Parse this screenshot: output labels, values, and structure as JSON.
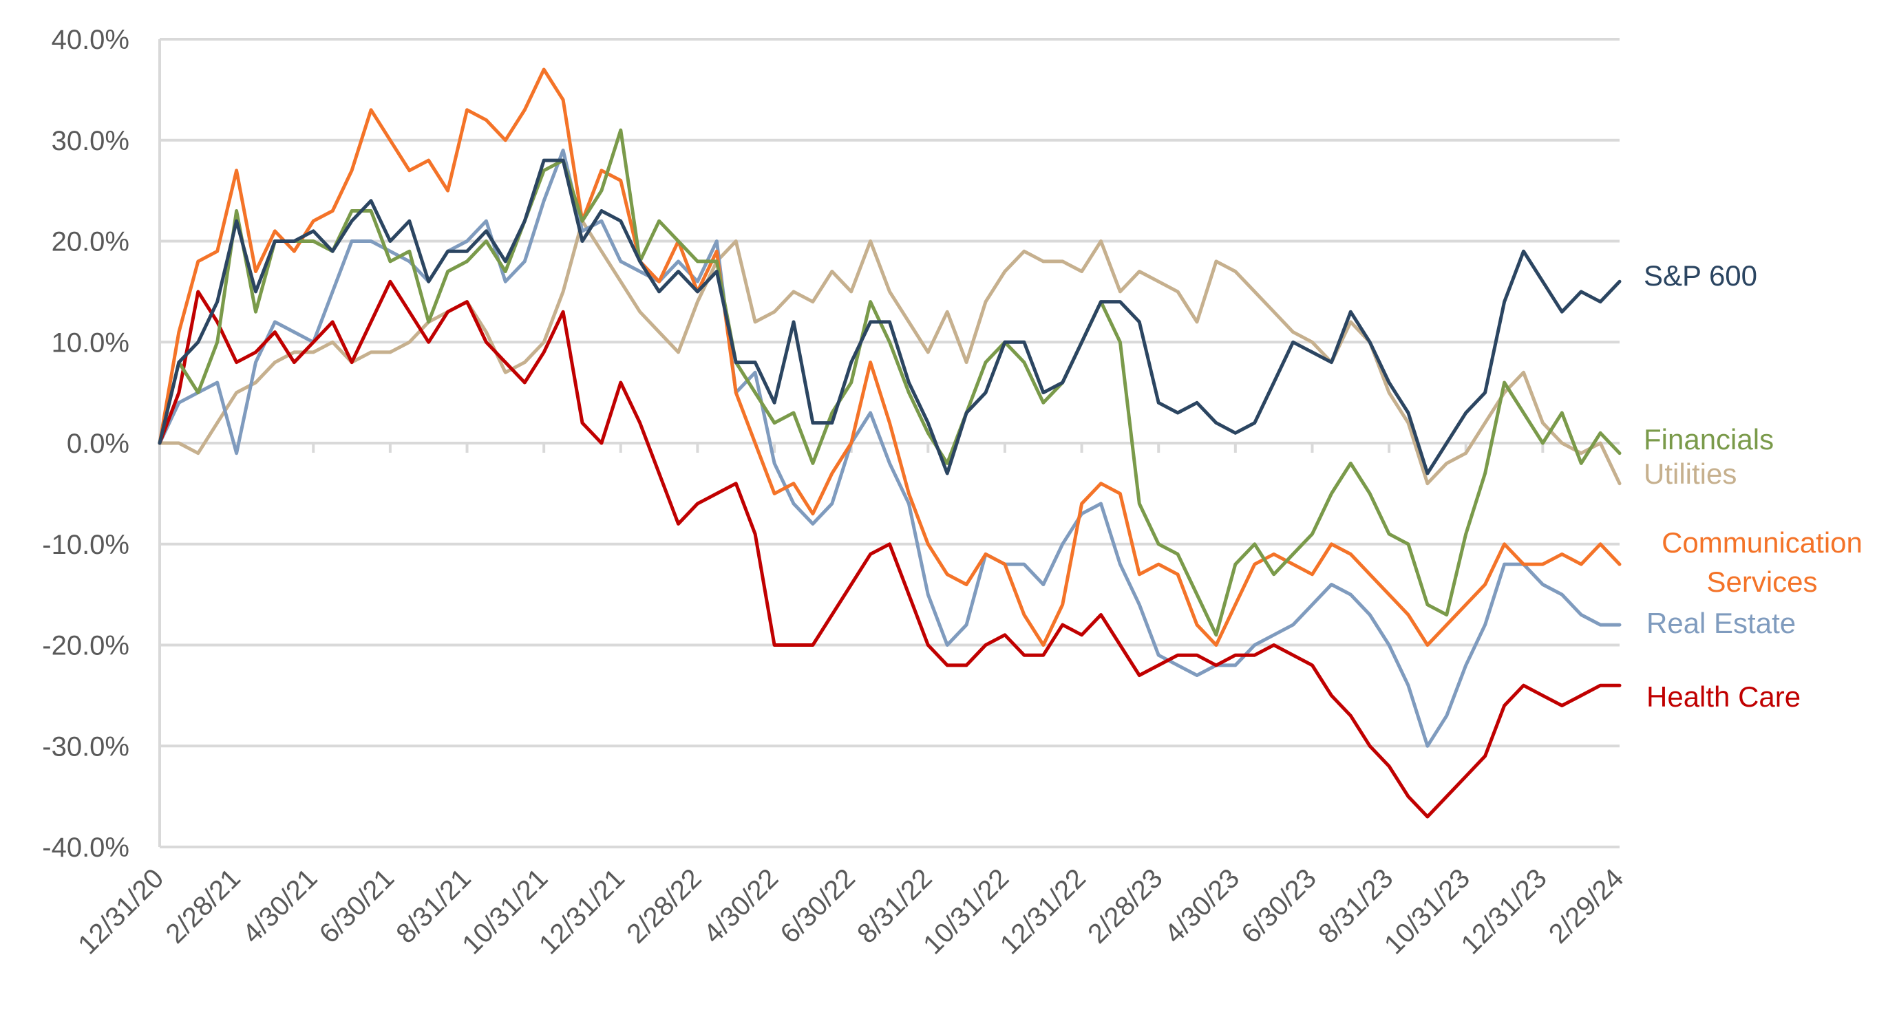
{
  "chart_data": {
    "type": "line",
    "title": "",
    "xlabel": "",
    "ylabel": "",
    "ylim": [
      -40,
      40
    ],
    "ytick_step": 10,
    "ytick_labels": [
      "40.0%",
      "30.0%",
      "20.0%",
      "10.0%",
      "0.0%",
      "-10.0%",
      "-20.0%",
      "-30.0%",
      "-40.0%"
    ],
    "grid": true,
    "legend": "inline-right",
    "x_unit": "months since 12/31/20",
    "xlim": [
      0,
      38
    ],
    "xtick_labels": [
      "12/31/20",
      "2/28/21",
      "4/30/21",
      "6/30/21",
      "8/31/21",
      "10/31/21",
      "12/31/21",
      "2/28/22",
      "4/30/22",
      "6/30/22",
      "8/31/22",
      "10/31/22",
      "12/31/22",
      "2/28/23",
      "4/30/23",
      "6/30/23",
      "8/31/23",
      "10/31/23",
      "12/31/23",
      "2/29/24"
    ],
    "x": [
      0,
      0.5,
      1,
      1.5,
      2,
      2.5,
      3,
      3.5,
      4,
      4.5,
      5,
      5.5,
      6,
      6.5,
      7,
      7.5,
      8,
      8.5,
      9,
      9.5,
      10,
      10.5,
      11,
      11.5,
      12,
      12.5,
      13,
      13.5,
      14,
      14.5,
      15,
      15.5,
      16,
      16.5,
      17,
      17.5,
      18,
      18.5,
      19,
      19.5,
      20,
      20.5,
      21,
      21.5,
      22,
      22.5,
      23,
      23.5,
      24,
      24.5,
      25,
      25.5,
      26,
      26.5,
      27,
      27.5,
      28,
      28.5,
      29,
      29.5,
      30,
      30.5,
      31,
      31.5,
      32,
      32.5,
      33,
      33.5,
      34,
      34.5,
      35,
      35.5,
      36,
      36.5,
      37,
      37.5,
      38
    ],
    "series": [
      {
        "name": "Utilities",
        "label": "Utilities",
        "color": "#C6B08E",
        "values": [
          0,
          0,
          -1,
          2,
          5,
          6,
          8,
          9,
          9,
          10,
          8,
          9,
          9,
          10,
          12,
          13,
          14,
          11,
          7,
          8,
          10,
          15,
          22,
          19,
          16,
          13,
          11,
          9,
          14,
          18,
          20,
          12,
          13,
          15,
          14,
          17,
          15,
          20,
          15,
          12,
          9,
          13,
          8,
          14,
          17,
          19,
          18,
          18,
          17,
          20,
          15,
          17,
          16,
          15,
          12,
          18,
          17,
          15,
          13,
          11,
          10,
          8,
          12,
          10,
          5,
          2,
          -4,
          -2,
          -1,
          2,
          5,
          7,
          2,
          0,
          -1,
          0,
          -4
        ]
      },
      {
        "name": "Real Estate",
        "label": "Real Estate",
        "color": "#7F9BBE",
        "values": [
          0,
          4,
          5,
          6,
          -1,
          8,
          12,
          11,
          10,
          15,
          20,
          20,
          19,
          18,
          16,
          19,
          20,
          22,
          16,
          18,
          24,
          29,
          21,
          22,
          18,
          17,
          16,
          18,
          16,
          20,
          5,
          7,
          -2,
          -6,
          -8,
          -6,
          0,
          3,
          -2,
          -6,
          -15,
          -20,
          -18,
          -11,
          -12,
          -12,
          -14,
          -10,
          -7,
          -6,
          -12,
          -16,
          -21,
          -22,
          -23,
          -22,
          -22,
          -20,
          -19,
          -18,
          -16,
          -14,
          -15,
          -17,
          -20,
          -24,
          -30,
          -27,
          -22,
          -18,
          -12,
          -12,
          -14,
          -15,
          -17,
          -18,
          -18
        ]
      },
      {
        "name": "Health Care",
        "label": "Health Care",
        "color": "#C00000",
        "values": [
          0,
          5,
          15,
          12,
          8,
          9,
          11,
          8,
          10,
          12,
          8,
          12,
          16,
          13,
          10,
          13,
          14,
          10,
          8,
          6,
          9,
          13,
          2,
          0,
          6,
          2,
          -3,
          -8,
          -6,
          -5,
          -4,
          -9,
          -20,
          -20,
          -20,
          -17,
          -14,
          -11,
          -10,
          -15,
          -20,
          -22,
          -22,
          -20,
          -19,
          -21,
          -21,
          -18,
          -19,
          -17,
          -20,
          -23,
          -22,
          -21,
          -21,
          -22,
          -21,
          -21,
          -20,
          -21,
          -22,
          -25,
          -27,
          -30,
          -32,
          -35,
          -37,
          -35,
          -33,
          -31,
          -26,
          -24,
          -25,
          -26,
          -25,
          -24,
          -24
        ]
      },
      {
        "name": "Communication Services",
        "label": [
          "Communication",
          "Services"
        ],
        "color": "#F47328",
        "values": [
          0,
          11,
          18,
          19,
          27,
          17,
          21,
          19,
          22,
          23,
          27,
          33,
          30,
          27,
          28,
          25,
          33,
          32,
          30,
          33,
          37,
          34,
          22,
          27,
          26,
          18,
          16,
          20,
          15,
          19,
          5,
          0,
          -5,
          -4,
          -7,
          -3,
          0,
          8,
          2,
          -5,
          -10,
          -13,
          -14,
          -11,
          -12,
          -17,
          -20,
          -16,
          -6,
          -4,
          -5,
          -13,
          -12,
          -13,
          -18,
          -20,
          -16,
          -12,
          -11,
          -12,
          -13,
          -10,
          -11,
          -13,
          -15,
          -17,
          -20,
          -18,
          -16,
          -14,
          -10,
          -12,
          -12,
          -11,
          -12,
          -10,
          -12
        ]
      },
      {
        "name": "Financials",
        "label": "Financials",
        "color": "#7A9A4A",
        "values": [
          0,
          8,
          5,
          10,
          23,
          13,
          20,
          20,
          20,
          19,
          23,
          23,
          18,
          19,
          12,
          17,
          18,
          20,
          17,
          22,
          27,
          28,
          22,
          25,
          31,
          18,
          22,
          20,
          18,
          18,
          8,
          5,
          2,
          3,
          -2,
          3,
          6,
          14,
          10,
          5,
          1,
          -2,
          3,
          8,
          10,
          8,
          4,
          6,
          10,
          14,
          10,
          -6,
          -10,
          -11,
          -15,
          -19,
          -12,
          -10,
          -13,
          -11,
          -9,
          -5,
          -2,
          -5,
          -9,
          -10,
          -16,
          -17,
          -9,
          -3,
          6,
          3,
          0,
          3,
          -2,
          1,
          -1
        ]
      },
      {
        "name": "S&P 600",
        "label": "S&P 600",
        "color": "#2B4561",
        "values": [
          0,
          8,
          10,
          14,
          22,
          15,
          20,
          20,
          21,
          19,
          22,
          24,
          20,
          22,
          16,
          19,
          19,
          21,
          18,
          22,
          28,
          28,
          20,
          23,
          22,
          18,
          15,
          17,
          15,
          17,
          8,
          8,
          4,
          12,
          2,
          2,
          8,
          12,
          12,
          6,
          2,
          -3,
          3,
          5,
          10,
          10,
          5,
          6,
          10,
          14,
          14,
          12,
          4,
          3,
          4,
          2,
          1,
          2,
          6,
          10,
          9,
          8,
          13,
          10,
          6,
          3,
          -3,
          0,
          3,
          5,
          14,
          19,
          16,
          13,
          15,
          14,
          16
        ]
      }
    ]
  }
}
